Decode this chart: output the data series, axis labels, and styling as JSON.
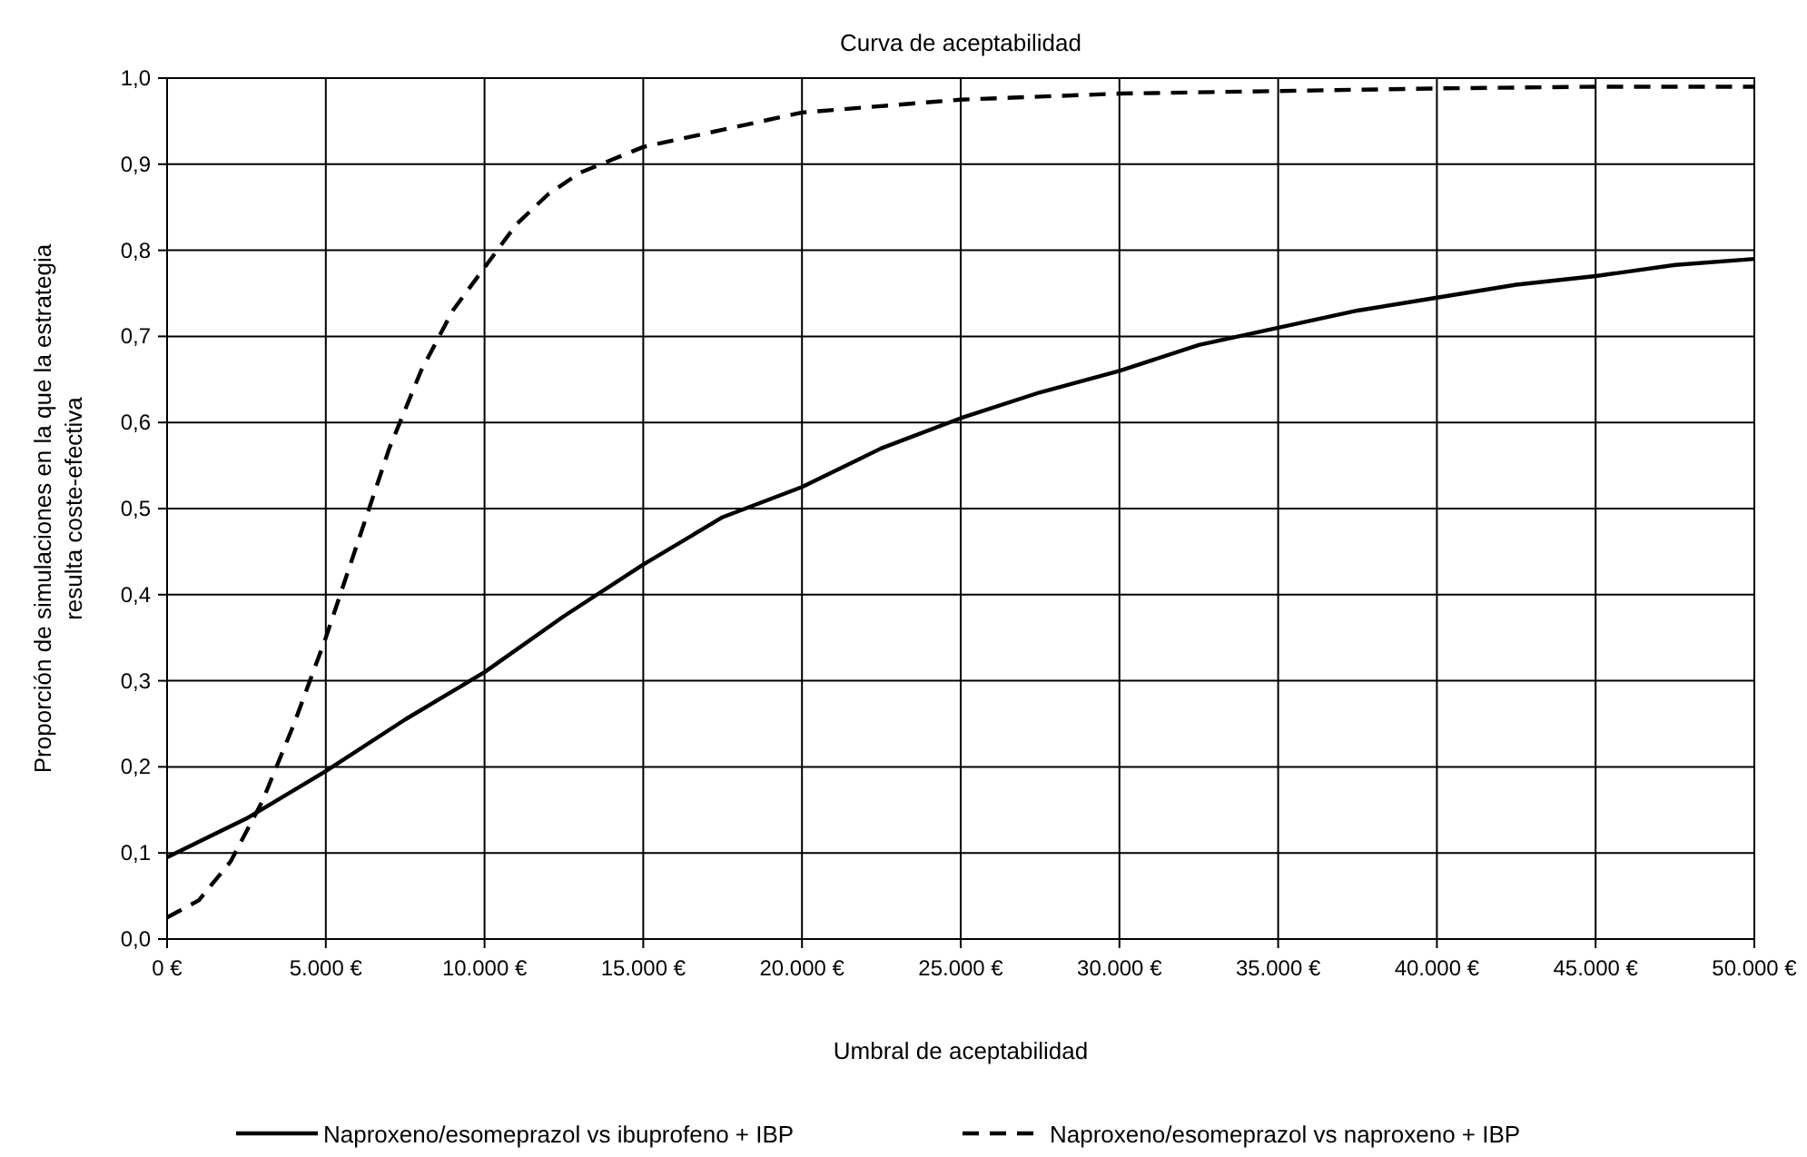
{
  "chart_data": {
    "type": "line",
    "title": "Curva de aceptabilidad",
    "xlabel": "Umbral de aceptabilidad",
    "ylabel": "Proporción de simulaciones en la que la estrategia resulta coste-efectiva",
    "xlim": [
      0,
      50000
    ],
    "xticks": [
      {
        "value": 0,
        "label": "0 €"
      },
      {
        "value": 5000,
        "label": "5.000 €"
      },
      {
        "value": 10000,
        "label": "10.000 €"
      },
      {
        "value": 15000,
        "label": "15.000 €"
      },
      {
        "value": 20000,
        "label": "20.000 €"
      },
      {
        "value": 25000,
        "label": "25.000 €"
      },
      {
        "value": 30000,
        "label": "30.000 €"
      },
      {
        "value": 35000,
        "label": "35.000 €"
      },
      {
        "value": 40000,
        "label": "40.000 €"
      },
      {
        "value": 45000,
        "label": "45.000 €"
      },
      {
        "value": 50000,
        "label": "50.000 €"
      }
    ],
    "ylim": [
      0,
      1
    ],
    "yticks": [
      {
        "value": 0,
        "label": "0,0"
      },
      {
        "value": 0.1,
        "label": "0,1"
      },
      {
        "value": 0.2,
        "label": "0,2"
      },
      {
        "value": 0.3,
        "label": "0,3"
      },
      {
        "value": 0.4,
        "label": "0,4"
      },
      {
        "value": 0.5,
        "label": "0,5"
      },
      {
        "value": 0.6,
        "label": "0,6"
      },
      {
        "value": 0.7,
        "label": "0,7"
      },
      {
        "value": 0.8,
        "label": "0,8"
      },
      {
        "value": 0.9,
        "label": "0,9"
      },
      {
        "value": 1,
        "label": "1,0"
      }
    ],
    "grid": true,
    "legend": "bottom",
    "marker": "none",
    "series": [
      {
        "name": "Naproxeno/esomeprazol vs ibuprofeno + IBP",
        "color": "#000000",
        "line_style": "solid",
        "x": [
          0,
          2500,
          5000,
          7500,
          10000,
          12500,
          15000,
          17500,
          20000,
          22500,
          25000,
          27500,
          30000,
          32500,
          35000,
          37500,
          40000,
          42500,
          45000,
          47500,
          50000
        ],
        "values": [
          0.095,
          0.14,
          0.195,
          0.255,
          0.31,
          0.375,
          0.435,
          0.49,
          0.525,
          0.57,
          0.605,
          0.635,
          0.66,
          0.69,
          0.71,
          0.73,
          0.745,
          0.76,
          0.77,
          0.783,
          0.79
        ]
      },
      {
        "name": "Naproxeno/esomeprazol vs naproxeno + IBP",
        "color": "#000000",
        "line_style": "dashed",
        "x": [
          0,
          1000,
          2000,
          3000,
          4000,
          5000,
          6000,
          7000,
          8000,
          9000,
          10000,
          11000,
          12000,
          13000,
          14000,
          15000,
          17500,
          20000,
          25000,
          30000,
          35000,
          40000,
          45000,
          50000
        ],
        "values": [
          0.025,
          0.045,
          0.09,
          0.16,
          0.25,
          0.35,
          0.46,
          0.57,
          0.66,
          0.73,
          0.78,
          0.83,
          0.865,
          0.89,
          0.905,
          0.92,
          0.94,
          0.96,
          0.975,
          0.982,
          0.985,
          0.988,
          0.99,
          0.99
        ]
      }
    ]
  }
}
